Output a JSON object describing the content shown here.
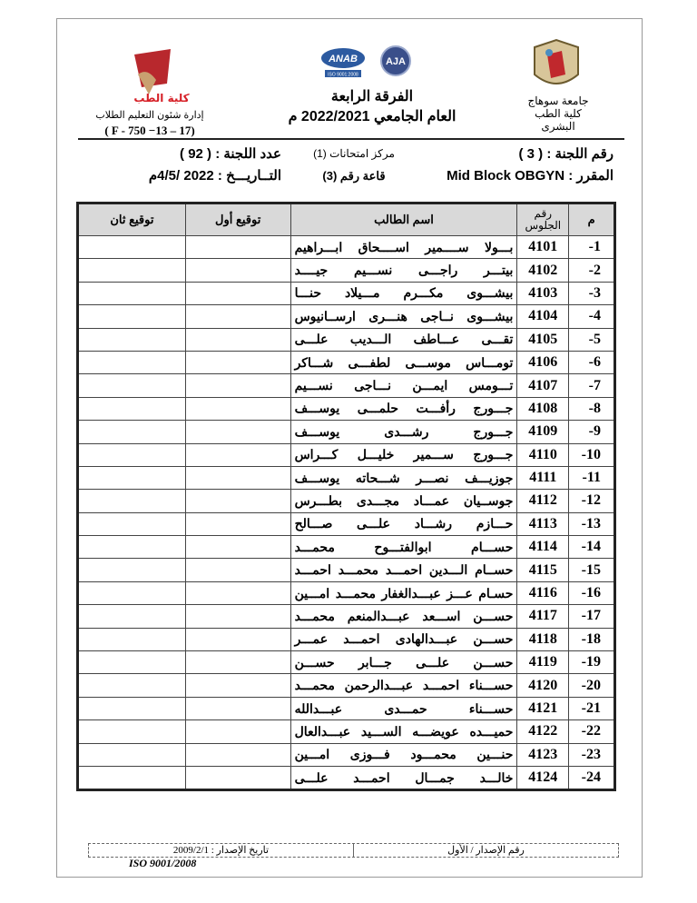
{
  "header": {
    "right_org_line1": "جامعة سوهاج",
    "right_org_line2": "كلية الطب البشرى",
    "center_line1": "الفرقة الرابعة",
    "center_line2": "العام الجامعي 2022/2021 م",
    "left_dept": "إدارة شئون التعليم الطلاب",
    "left_code": "( F - 750 −13 – 17)",
    "logo_left_text": "جامعة سوهاج كلية الطب",
    "cert_logos": [
      "ANAB",
      "AJA",
      "ISO 9001:2008"
    ]
  },
  "info": {
    "committee_no": "رقم اللجنة : ( 3 )",
    "course": "المقرر : Mid Block OBGYN",
    "center": "مركز امتحانات (1)",
    "hall": "قاعة رقم (3)",
    "committee_count": "عدد اللجنة : ( 92 )",
    "date": "التــاريـــخ :  2022 /4/5م"
  },
  "table": {
    "headers": {
      "index": "م",
      "seat": "رقم الجلوس",
      "name": "اسم الطالب",
      "sig1": "توقيع أول",
      "sig2": "توقيع ثان"
    },
    "rows": [
      {
        "i": "-1",
        "seat": "4101",
        "name": "بـــولا ســــمير اســــحاق ابـــراهيم"
      },
      {
        "i": "-2",
        "seat": "4102",
        "name": "بيتـــر راجـــى نســـيم جيــــد"
      },
      {
        "i": "-3",
        "seat": "4103",
        "name": "بيشـــوى مكـــرم مـــيلاد حنـــا"
      },
      {
        "i": "-4",
        "seat": "4104",
        "name": "بيشـــوى نــاجى هنـــرى ارســانيوس"
      },
      {
        "i": "-5",
        "seat": "4105",
        "name": "تقـــى عـــاطف الـــديب علـــى"
      },
      {
        "i": "-6",
        "seat": "4106",
        "name": "تومـــاس موســـى لطفـــى شـــاكر"
      },
      {
        "i": "-7",
        "seat": "4107",
        "name": "تـــومس ايمـــن نـــاجى نســـيم"
      },
      {
        "i": "-8",
        "seat": "4108",
        "name": "جـــورج رأفـــت حلمـــى يوســـف"
      },
      {
        "i": "-9",
        "seat": "4109",
        "name": "جـــورج رشـــدى يوســـف"
      },
      {
        "i": "-10",
        "seat": "4110",
        "name": "جـــورج ســـمير خليـــل كـــراس"
      },
      {
        "i": "-11",
        "seat": "4111",
        "name": "جوزيـــف نصـــر شـــحاته يوســـف"
      },
      {
        "i": "-12",
        "seat": "4112",
        "name": "جوســيان عمـــاد مجـــدى بطـــرس"
      },
      {
        "i": "-13",
        "seat": "4113",
        "name": "حـــازم رشـــاد علـــى صـــالح"
      },
      {
        "i": "-14",
        "seat": "4114",
        "name": "حســـام ابوالفتـــوح محمـــد"
      },
      {
        "i": "-15",
        "seat": "4115",
        "name": "حســام الـــدين احمـــد محمـــد احمـــد"
      },
      {
        "i": "-16",
        "seat": "4116",
        "name": "حسـام عـــز عبـــدالغفار محمـــد امـــين"
      },
      {
        "i": "-17",
        "seat": "4117",
        "name": "حســـن اســـعد عبـــدالمنعم محمـــد"
      },
      {
        "i": "-18",
        "seat": "4118",
        "name": "حســـن عبـــدالهادى احمـــد عمـــر"
      },
      {
        "i": "-19",
        "seat": "4119",
        "name": "حســـن علـــى جـــابر حســـن"
      },
      {
        "i": "-20",
        "seat": "4120",
        "name": "حســـناء احمـــد عبـــدالرحمن محمـــد"
      },
      {
        "i": "-21",
        "seat": "4121",
        "name": "حســـناء حمـــدى عبـــدالله"
      },
      {
        "i": "-22",
        "seat": "4122",
        "name": "حميـــده عويضـــه الســـيد عبـــدالعال"
      },
      {
        "i": "-23",
        "seat": "4123",
        "name": "حنـــين محمـــود فـــوزى امـــين"
      },
      {
        "i": "-24",
        "seat": "4124",
        "name": "خالـــد جمـــال احمـــد علـــى"
      }
    ]
  },
  "footer": {
    "version": "رقم الإصدار / الأول",
    "issue_date": "تاريخ الإصدار : 2009/2/1",
    "iso": "ISO 9001/2008"
  }
}
